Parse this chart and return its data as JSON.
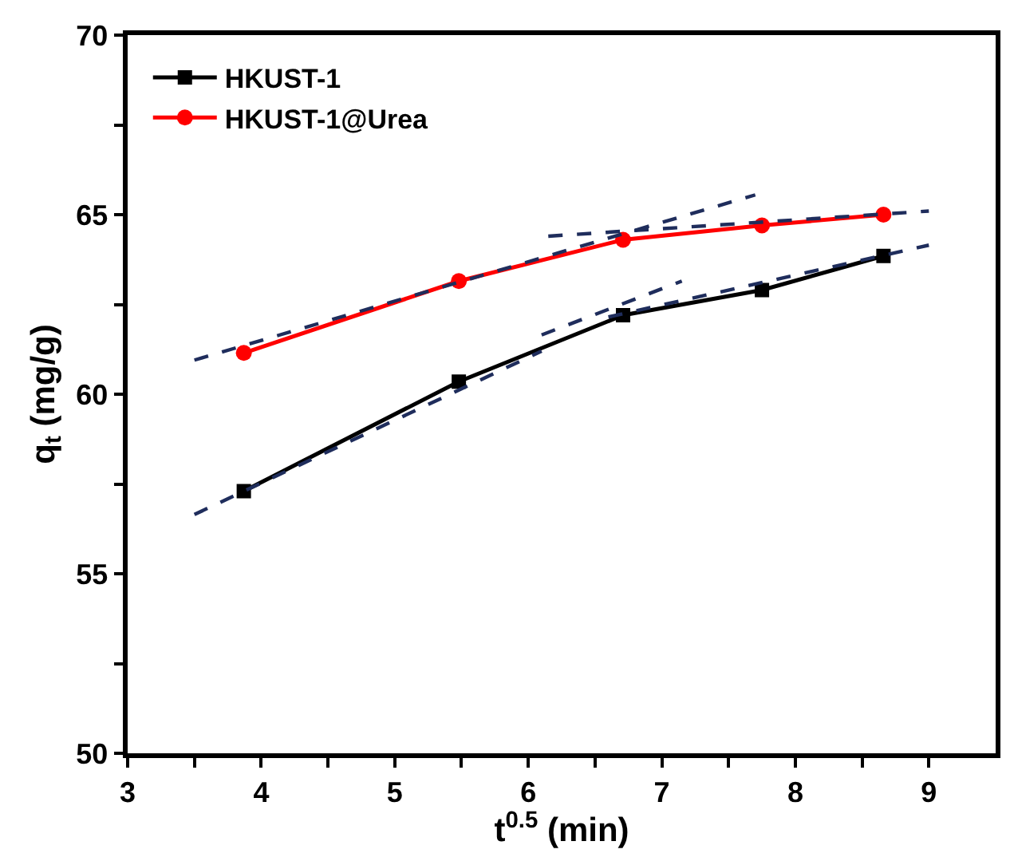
{
  "chart_data": {
    "type": "line",
    "xlabel": "t$^{0.5}$ (min)",
    "ylabel": "q$_{t}$ (mg/g)",
    "xlim": [
      3,
      9.5
    ],
    "ylim": [
      50,
      70
    ],
    "xticks": [
      3,
      {
        "value": 3.5,
        "label": null
      },
      4,
      {
        "value": 4.5,
        "label": null
      },
      5,
      {
        "value": 5.5,
        "label": null
      },
      6,
      {
        "value": 6.5,
        "label": null
      },
      7,
      {
        "value": 7.5,
        "label": null
      },
      8,
      {
        "value": 8.5,
        "label": null
      },
      9
    ],
    "yticks": [
      50,
      {
        "value": 52.5,
        "label": null
      },
      55,
      {
        "value": 57.5,
        "label": null
      },
      60,
      {
        "value": 62.5,
        "label": null
      },
      65,
      {
        "value": 67.5,
        "label": null
      },
      70
    ],
    "legend": "top left",
    "x": [
      3.87,
      5.48,
      6.71,
      7.75,
      8.66
    ],
    "series": [
      {
        "name": "HKUST-1",
        "color": "#000000",
        "marker": "square",
        "line_style": "solid",
        "values": [
          57.3,
          60.35,
          62.2,
          62.9,
          63.85
        ]
      },
      {
        "name": "HKUST-1@Urea",
        "color": "#ff0000",
        "marker": "circle",
        "line_style": "solid",
        "values": [
          61.15,
          63.15,
          64.3,
          64.7,
          65.0
        ]
      },
      {
        "color": "#1f2d5c",
        "marker": "none",
        "line_style": "dashed",
        "x": [
          3.5,
          6.1
        ],
        "values": [
          56.65,
          61.2
        ]
      },
      {
        "color": "#1f2d5c",
        "marker": "none",
        "line_style": "dashed",
        "x": [
          6.1,
          7.15
        ],
        "values": [
          61.65,
          63.15
        ]
      },
      {
        "color": "#1f2d5c",
        "marker": "none",
        "line_style": "dashed",
        "x": [
          6.6,
          9.0
        ],
        "values": [
          62.15,
          64.15
        ]
      },
      {
        "color": "#1f2d5c",
        "marker": "none",
        "line_style": "dashed",
        "x": [
          3.5,
          7.7
        ],
        "values": [
          60.95,
          65.55
        ]
      },
      {
        "color": "#1f2d5c",
        "marker": "none",
        "line_style": "dashed",
        "x": [
          6.15,
          9.0
        ],
        "values": [
          64.4,
          65.1
        ]
      }
    ]
  }
}
